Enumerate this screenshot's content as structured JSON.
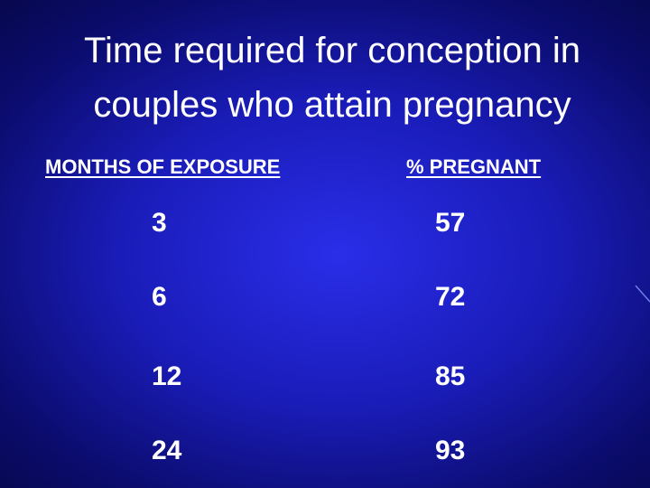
{
  "title": {
    "lines": [
      "Time required for conception in",
      "couples who attain pregnancy"
    ]
  },
  "table": {
    "header": [
      "MONTHS OF EXPOSURE",
      "% PREGNANT"
    ],
    "rows": [
      [
        3,
        57
      ],
      [
        6,
        72
      ],
      [
        12,
        85
      ],
      [
        24,
        93
      ]
    ]
  }
}
